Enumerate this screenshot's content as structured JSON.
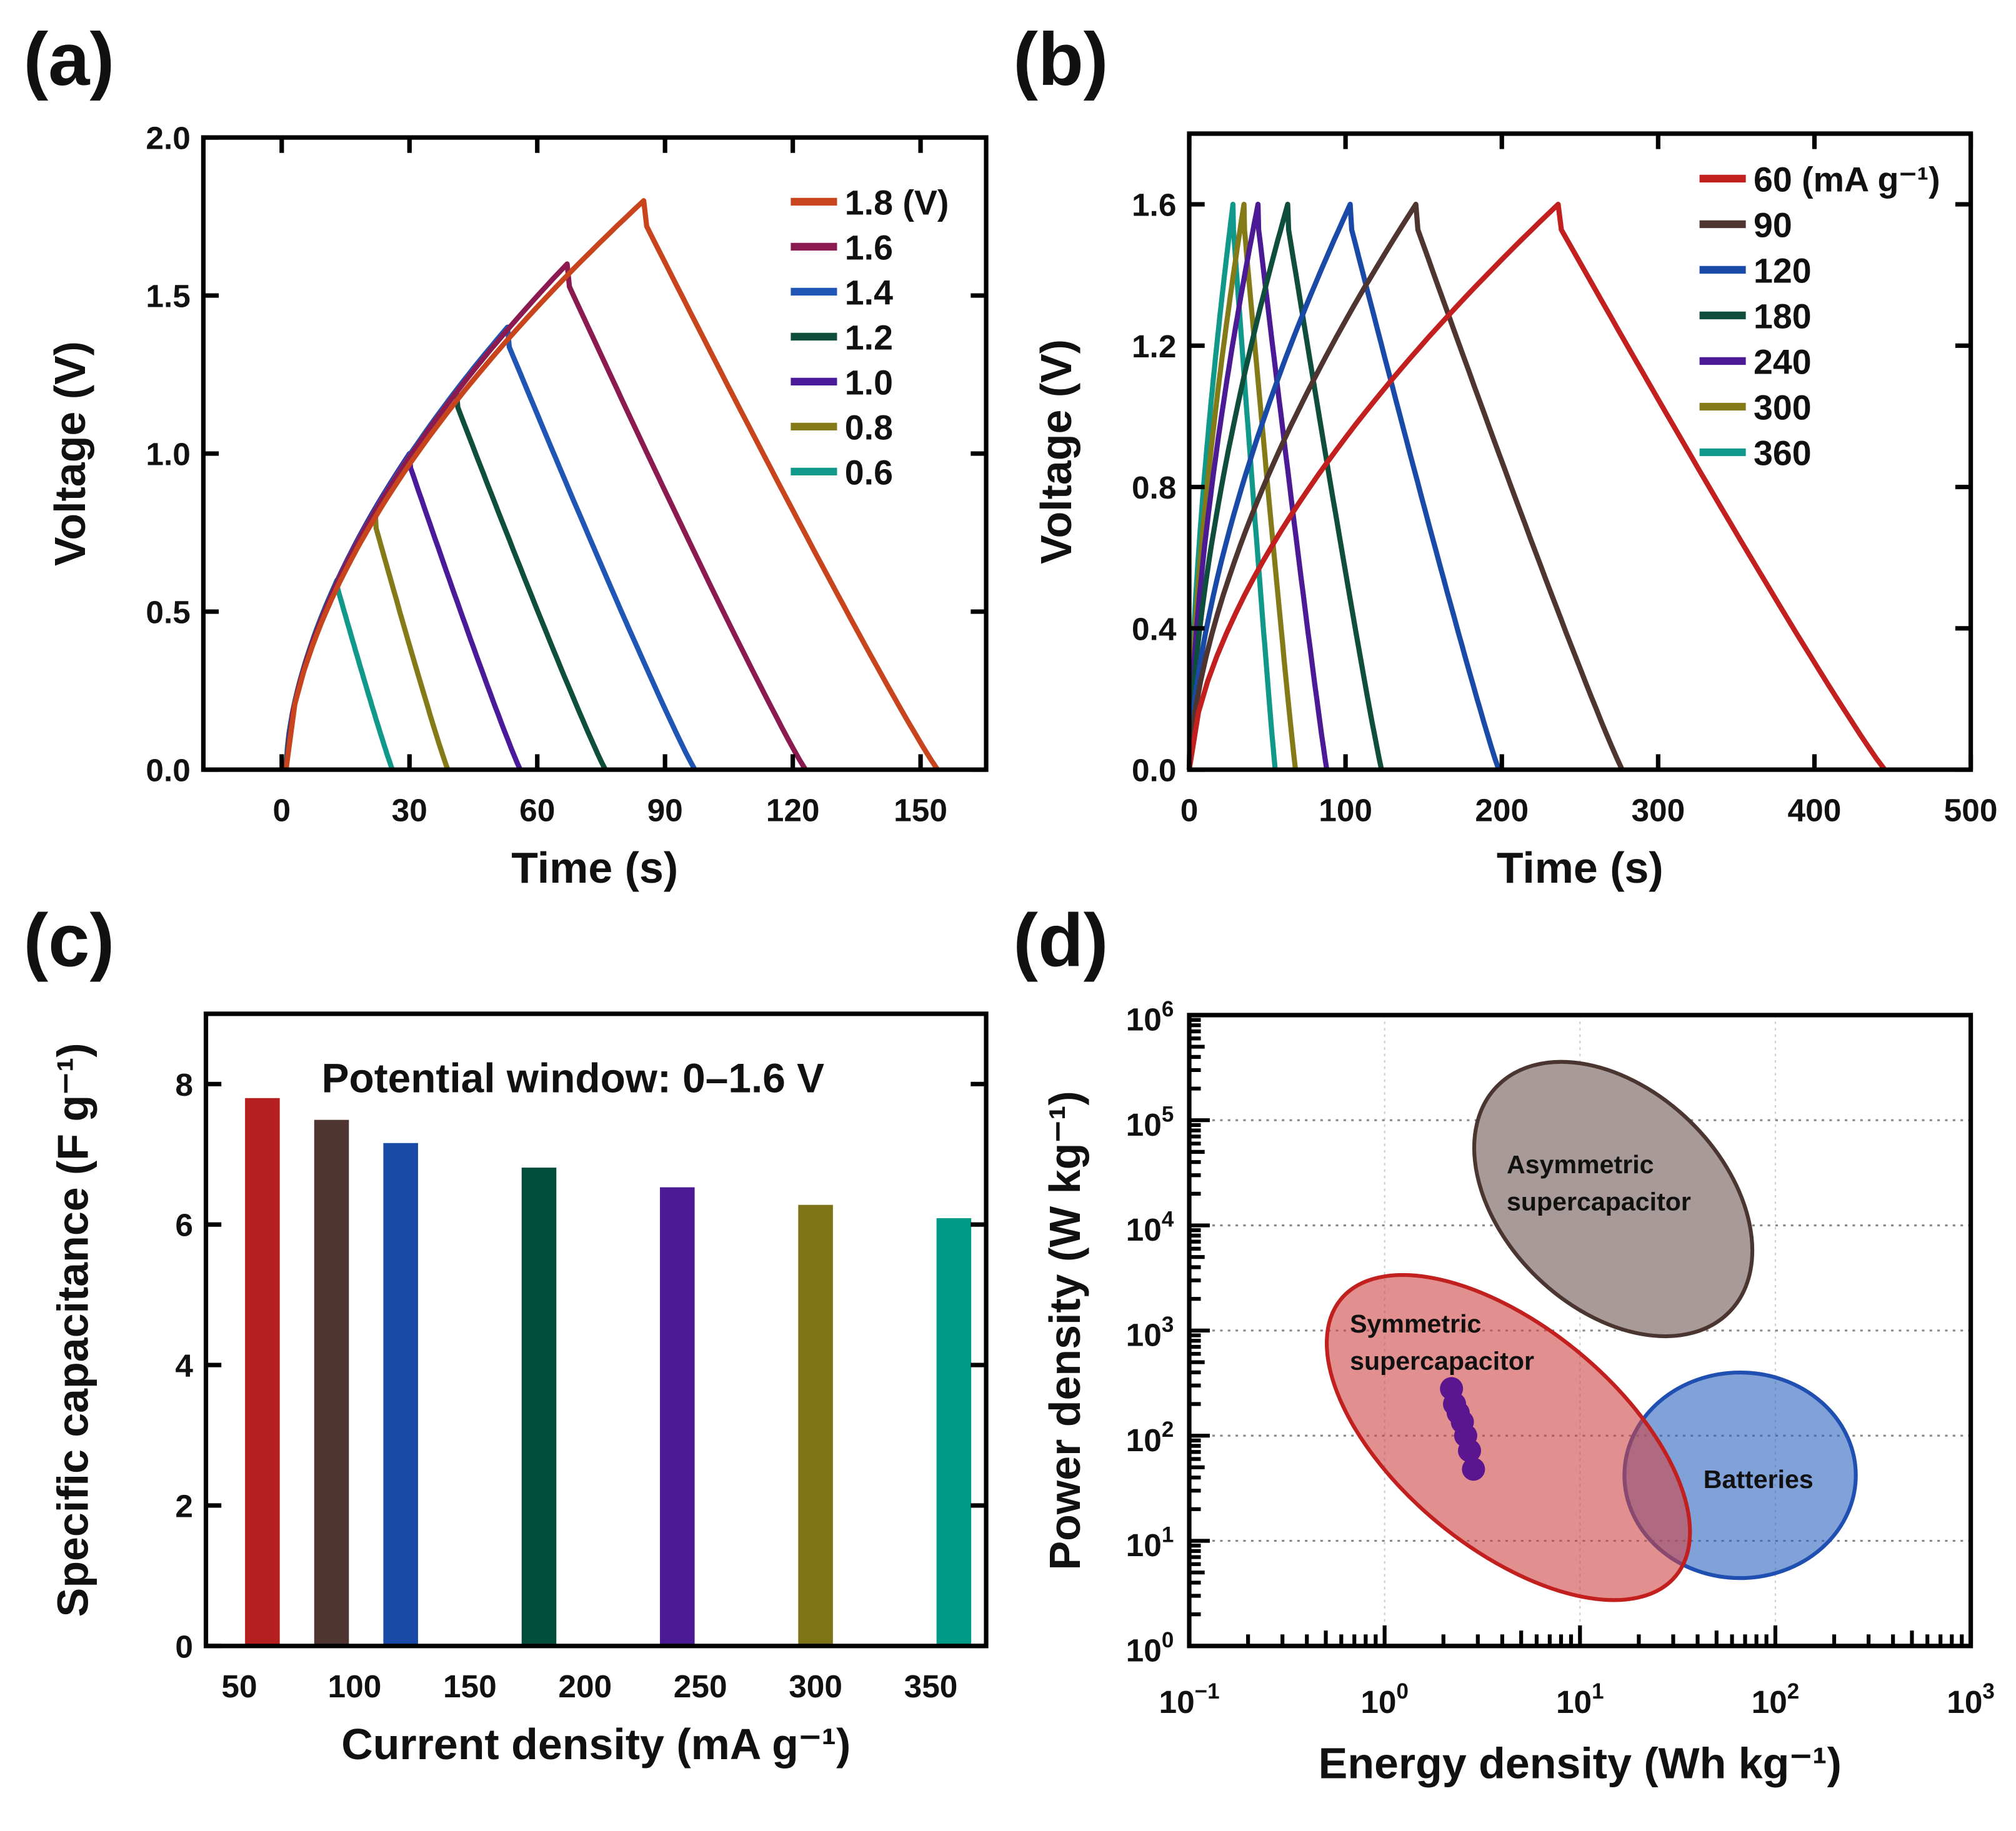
{
  "panel_labels": {
    "a": "(a)",
    "b": "(b)",
    "c": "(c)",
    "d": "(d)"
  },
  "chart_data": [
    {
      "id": "a",
      "type": "line",
      "title": "",
      "xlabel": "Time (s)",
      "ylabel": "Voltage (V)",
      "xlim": [
        -18.4,
        165.4
      ],
      "ylim": [
        0,
        2.0
      ],
      "xticks": [
        0,
        30,
        60,
        90,
        120,
        150
      ],
      "xtick_labels": [
        "0",
        "30",
        "60",
        "90",
        "120",
        "150"
      ],
      "yticks": [
        0,
        0.5,
        1.0,
        1.5,
        2.0
      ],
      "ytick_labels": [
        "0.0",
        "0.5",
        "1.0",
        "1.5",
        "2.0"
      ],
      "legend_position": "top-right",
      "series": [
        {
          "name": "1.8 (V)",
          "color": "#c8441c",
          "start_time_s": 1,
          "peak_time_s": 85,
          "end_time_s": 154,
          "peak_V": 1.8
        },
        {
          "name": "1.6",
          "color": "#8b1a50",
          "start_time_s": 1,
          "peak_time_s": 67,
          "end_time_s": 123,
          "peak_V": 1.6
        },
        {
          "name": "1.4",
          "color": "#1f56b5",
          "start_time_s": 1,
          "peak_time_s": 53,
          "end_time_s": 97,
          "peak_V": 1.4
        },
        {
          "name": "1.2",
          "color": "#0f4d3c",
          "start_time_s": 1,
          "peak_time_s": 41,
          "end_time_s": 76,
          "peak_V": 1.2
        },
        {
          "name": "1.0",
          "color": "#4a1a9a",
          "start_time_s": 1,
          "peak_time_s": 30,
          "end_time_s": 56,
          "peak_V": 1.0
        },
        {
          "name": "0.8",
          "color": "#857a18",
          "start_time_s": 1,
          "peak_time_s": 22,
          "end_time_s": 39,
          "peak_V": 0.8
        },
        {
          "name": "0.6",
          "color": "#10998a",
          "start_time_s": 1,
          "peak_time_s": 13,
          "end_time_s": 26,
          "peak_V": 0.6
        }
      ]
    },
    {
      "id": "b",
      "type": "line",
      "title": "",
      "xlabel": "Time (s)",
      "ylabel": "Voltage (V)",
      "xlim": [
        0,
        500
      ],
      "ylim": [
        0,
        1.8
      ],
      "xticks": [
        0,
        100,
        200,
        300,
        400,
        500
      ],
      "xtick_labels": [
        "0",
        "100",
        "200",
        "300",
        "400",
        "500"
      ],
      "yticks": [
        0,
        0.4,
        0.8,
        1.2,
        1.6
      ],
      "ytick_labels": [
        "0.0",
        "0.4",
        "0.8",
        "1.2",
        "1.6"
      ],
      "legend_position": "top-right",
      "series": [
        {
          "name": "60 (mA g⁻¹)",
          "color": "#c21f1f",
          "start_time_s": 0,
          "peak_time_s": 236,
          "end_time_s": 445,
          "peak_V": 1.6
        },
        {
          "name": "90",
          "color": "#4e3530",
          "start_time_s": 0,
          "peak_time_s": 145,
          "end_time_s": 277,
          "peak_V": 1.6
        },
        {
          "name": "120",
          "color": "#1a4aa8",
          "start_time_s": 0,
          "peak_time_s": 103,
          "end_time_s": 198,
          "peak_V": 1.6
        },
        {
          "name": "180",
          "color": "#0f4d3c",
          "start_time_s": 0,
          "peak_time_s": 63,
          "end_time_s": 123,
          "peak_V": 1.6
        },
        {
          "name": "240",
          "color": "#4b1a94",
          "start_time_s": 0,
          "peak_time_s": 44,
          "end_time_s": 88,
          "peak_V": 1.6
        },
        {
          "name": "300",
          "color": "#857a18",
          "start_time_s": 0,
          "peak_time_s": 35,
          "end_time_s": 68,
          "peak_V": 1.6
        },
        {
          "name": "360",
          "color": "#10998a",
          "start_time_s": 0,
          "peak_time_s": 28,
          "end_time_s": 55,
          "peak_V": 1.6
        }
      ]
    },
    {
      "id": "c",
      "type": "bar",
      "title": "",
      "annotation": "Potential window: 0–1.6 V",
      "xlabel": "Current density (mA g⁻¹)",
      "ylabel": "Specific capacitance (F g⁻¹)",
      "xlim": [
        35.5,
        374
      ],
      "ylim": [
        0,
        9
      ],
      "xticks": [
        50,
        100,
        150,
        200,
        250,
        300,
        350
      ],
      "xtick_labels": [
        "50",
        "100",
        "150",
        "200",
        "250",
        "300",
        "350"
      ],
      "yticks": [
        0,
        2,
        4,
        6,
        8
      ],
      "ytick_labels": [
        "0",
        "2",
        "4",
        "6",
        "8"
      ],
      "x": [
        60,
        90,
        120,
        180,
        240,
        300,
        360
      ],
      "values": [
        7.8,
        7.49,
        7.16,
        6.81,
        6.53,
        6.28,
        6.09
      ],
      "colors": [
        "#b51f1f",
        "#4e3530",
        "#1a4aa8",
        "#004d3c",
        "#4b1a94",
        "#7f7318",
        "#009a88"
      ]
    },
    {
      "id": "d",
      "type": "scatter",
      "title": "",
      "xlabel": "Energy density (Wh kg⁻¹)",
      "ylabel": "Power density (W kg⁻¹)",
      "xscale": "log",
      "yscale": "log",
      "xlim": [
        0.1,
        1000
      ],
      "ylim": [
        1,
        1000000
      ],
      "xtick_exponents": [
        "−1",
        "0",
        "1",
        "2",
        "3"
      ],
      "ytick_exponents": [
        "0",
        "1",
        "2",
        "3",
        "4",
        "5",
        "6"
      ],
      "tick_base": "10",
      "grid": true,
      "regions": [
        {
          "name": "Asymmetric supercapacitor",
          "lines": [
            "Asymmetric",
            "supercapacitor"
          ],
          "center_energy": 14.8,
          "center_power": 17800,
          "fill": "#a89a98",
          "stroke": "#4a3530"
        },
        {
          "name": "Symmetric supercapacitor",
          "lines": [
            "Symmetric",
            "supercapacitor"
          ],
          "center_energy": 4.3,
          "center_power": 96,
          "fill": "#cf4545",
          "stroke": "#c21f1f"
        },
        {
          "name": "Batteries",
          "lines": [
            "Batteries"
          ],
          "center_energy": 66,
          "center_power": 42,
          "fill": "#2d62c0",
          "stroke": "#1f4fb0"
        }
      ],
      "points": {
        "color": "#5b168f",
        "energy": [
          2.2,
          2.28,
          2.38,
          2.5,
          2.6,
          2.72,
          2.85
        ],
        "power": [
          280,
          200,
          165,
          135,
          100,
          72,
          48
        ]
      }
    }
  ]
}
